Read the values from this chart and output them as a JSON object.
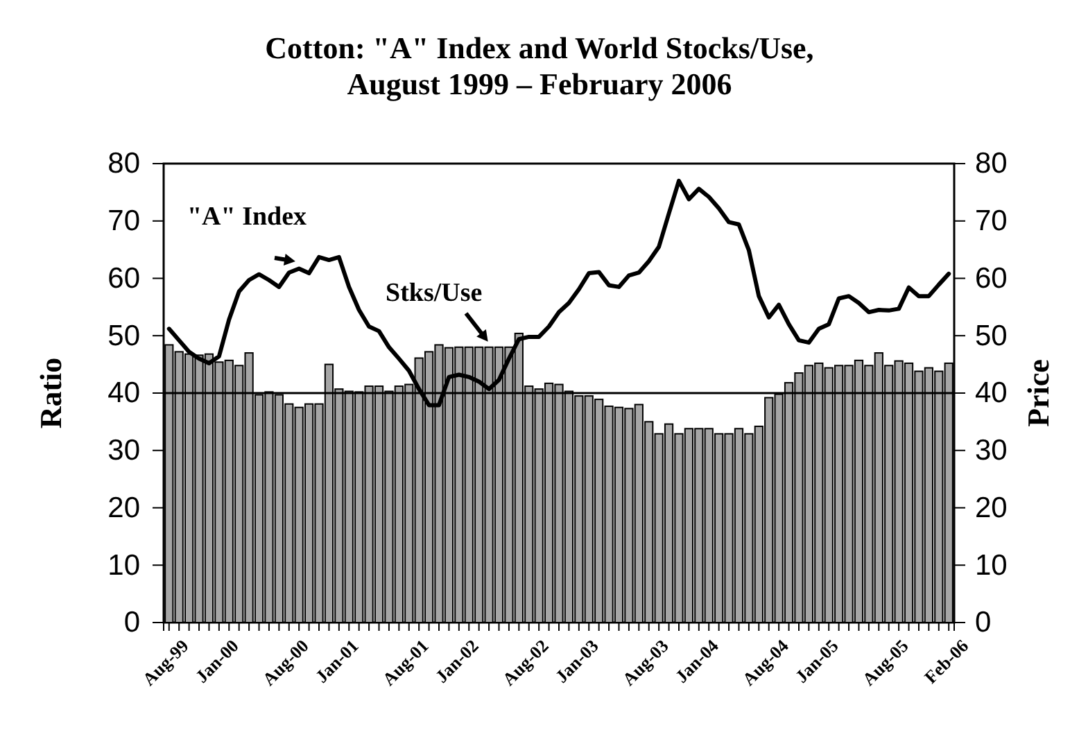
{
  "chart_data": {
    "type": "bar",
    "title": "Cotton:  \"A\" Index and World Stocks/Use,\nAugust 1999 – February 2006",
    "ylabel": "Ratio",
    "y2label": "Price",
    "categories": [
      "Aug-99",
      null,
      null,
      null,
      null,
      "Jan-00",
      null,
      null,
      null,
      null,
      null,
      null,
      "Aug-00",
      null,
      null,
      null,
      null,
      "Jan-01",
      null,
      null,
      null,
      null,
      null,
      null,
      "Aug-01",
      null,
      null,
      null,
      null,
      "Jan-02",
      null,
      null,
      null,
      null,
      null,
      null,
      "Aug-02",
      null,
      null,
      null,
      null,
      "Jan-03",
      null,
      null,
      null,
      null,
      null,
      null,
      "Aug-03",
      null,
      null,
      null,
      null,
      "Jan-04",
      null,
      null,
      null,
      null,
      null,
      null,
      "Aug-04",
      null,
      null,
      null,
      null,
      "Jan-05",
      null,
      null,
      null,
      null,
      null,
      null,
      "Aug-05",
      null,
      null,
      null,
      null,
      null,
      "Feb-06"
    ],
    "series": [
      {
        "name": "Stks/Use",
        "color": "#a6a6a6",
        "values": [
          48.4,
          47.2,
          46.8,
          46.6,
          46.8,
          45.4,
          45.7,
          44.8,
          47,
          39.7,
          40.2,
          39.7,
          38.1,
          37.5,
          38.1,
          38.1,
          45,
          40.7,
          40.3,
          40.2,
          41.2,
          41.2,
          40.3,
          41.2,
          41.5,
          46.1,
          47.2,
          48.4,
          47.9,
          48,
          48,
          48,
          48,
          48,
          48,
          50.4,
          41.2,
          40.7,
          41.7,
          41.5,
          40.3,
          39.5,
          39.5,
          38.9,
          37.7,
          37.5,
          37.3,
          38,
          35,
          32.9,
          34.6,
          32.9,
          33.8,
          33.8,
          33.8,
          32.9,
          32.9,
          33.8,
          32.9,
          34.2,
          39.2,
          39.8,
          41.8,
          43.5,
          44.8,
          45.2,
          44.4,
          44.8,
          44.8,
          45.7,
          44.8,
          47,
          44.8,
          45.6,
          45.2,
          43.8,
          44.4,
          43.8,
          45.2
        ]
      },
      {
        "name": "\"A\" Index",
        "type": "line",
        "axis": "y2",
        "color": "#000000",
        "values": [
          51.2,
          49.2,
          47.2,
          46,
          45.2,
          46.4,
          52.8,
          57.7,
          59.7,
          60.7,
          59.7,
          58.5,
          61,
          61.7,
          60.9,
          63.7,
          63.2,
          63.7,
          58.5,
          54.5,
          51.6,
          50.8,
          48,
          46,
          43.9,
          40.7,
          37.9,
          37.9,
          42.8,
          43.2,
          42.8,
          42,
          40.7,
          42.3,
          46,
          49.4,
          49.8,
          49.8,
          51.6,
          54.1,
          55.7,
          58.1,
          60.9,
          61.1,
          58.8,
          58.5,
          60.5,
          61,
          63,
          65.5,
          71.3,
          77,
          73.8,
          75.6,
          74.2,
          72.2,
          69.8,
          69.4,
          64.9,
          56.9,
          53.2,
          55.4,
          52,
          49.2,
          48.8,
          51.2,
          52,
          56.5,
          56.9,
          55.7,
          54.1,
          54.5,
          54.4,
          54.7,
          58.4,
          56.9,
          56.9,
          58.9,
          60.8
        ]
      }
    ],
    "ylim": [
      0,
      80
    ],
    "yticks": [
      0,
      10,
      20,
      30,
      40,
      50,
      60,
      70,
      80
    ],
    "y2lim": [
      0,
      80
    ],
    "y2ticks": [
      0,
      10,
      20,
      30,
      40,
      50,
      60,
      70,
      80
    ],
    "ref_lines": [
      {
        "axis": "y",
        "value": 40,
        "color": "#000000"
      }
    ]
  }
}
